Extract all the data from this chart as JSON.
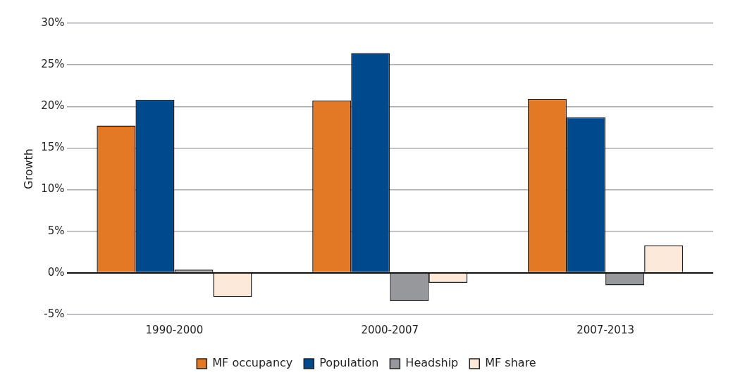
{
  "chart_data": {
    "type": "bar",
    "ylabel": "Growth",
    "categories": [
      "1990-2000",
      "2000-2007",
      "2007-2013"
    ],
    "series": [
      {
        "name": "MF occupancy",
        "color": "#e37825",
        "values": [
          17.7,
          20.7,
          20.9
        ]
      },
      {
        "name": "Population",
        "color": "#00498c",
        "values": [
          20.8,
          26.4,
          18.7
        ]
      },
      {
        "name": "Headship",
        "color": "#96989b",
        "values": [
          0.4,
          -3.4,
          -1.5
        ]
      },
      {
        "name": "MF share",
        "color": "#fde9da",
        "values": [
          -2.9,
          -1.2,
          3.3
        ]
      }
    ],
    "ylim": [
      -5,
      30
    ],
    "yticks": [
      {
        "value": -5,
        "label": "-5%"
      },
      {
        "value": 0,
        "label": "0%"
      },
      {
        "value": 5,
        "label": "5%"
      },
      {
        "value": 10,
        "label": "10%"
      },
      {
        "value": 15,
        "label": "15%"
      },
      {
        "value": 20,
        "label": "20%"
      },
      {
        "value": 25,
        "label": "25%"
      },
      {
        "value": 30,
        "label": "30%"
      }
    ],
    "grid": "y",
    "legend": "bottom"
  }
}
